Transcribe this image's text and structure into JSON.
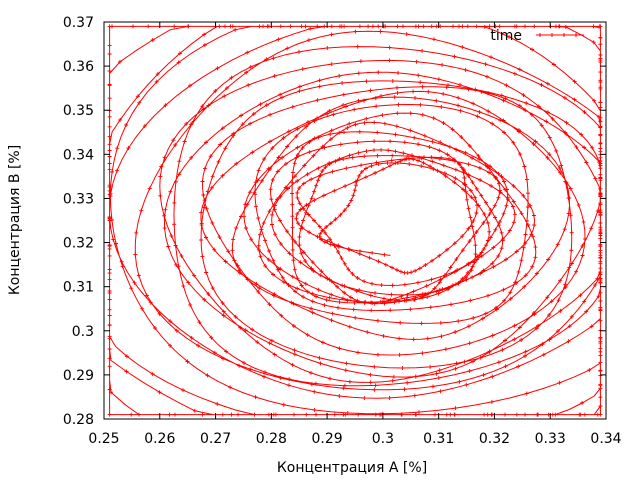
{
  "chart_data": {
    "type": "line",
    "title": "",
    "xlabel": "Концентрация A [%]",
    "ylabel": "Концентрация B [%]",
    "xlim": [
      0.25,
      0.34
    ],
    "ylim": [
      0.28,
      0.37
    ],
    "xticks": [
      0.25,
      0.26,
      0.27,
      0.28,
      0.29,
      0.3,
      0.31,
      0.32,
      0.33,
      0.34
    ],
    "xtick_labels": [
      "0.25",
      "0.26",
      "0.27",
      "0.28",
      "0.29",
      "0.3",
      "0.31",
      "0.32",
      "0.33",
      "0.34"
    ],
    "yticks": [
      0.28,
      0.29,
      0.3,
      0.31,
      0.32,
      0.33,
      0.34,
      0.35,
      0.36,
      0.37
    ],
    "ytick_labels": [
      "0.28",
      "0.29",
      "0.3",
      "0.31",
      "0.32",
      "0.33",
      "0.34",
      "0.35",
      "0.36",
      "0.37"
    ],
    "grid": false,
    "legend_position": "top-right",
    "series": [
      {
        "name": "time",
        "color": "#ff0000",
        "marker": "plus",
        "start": [
          0.2965,
          0.2862
        ],
        "center": [
          0.3015,
          0.3255
        ],
        "phase_portrait": "irregular spiral trajectory"
      }
    ]
  }
}
